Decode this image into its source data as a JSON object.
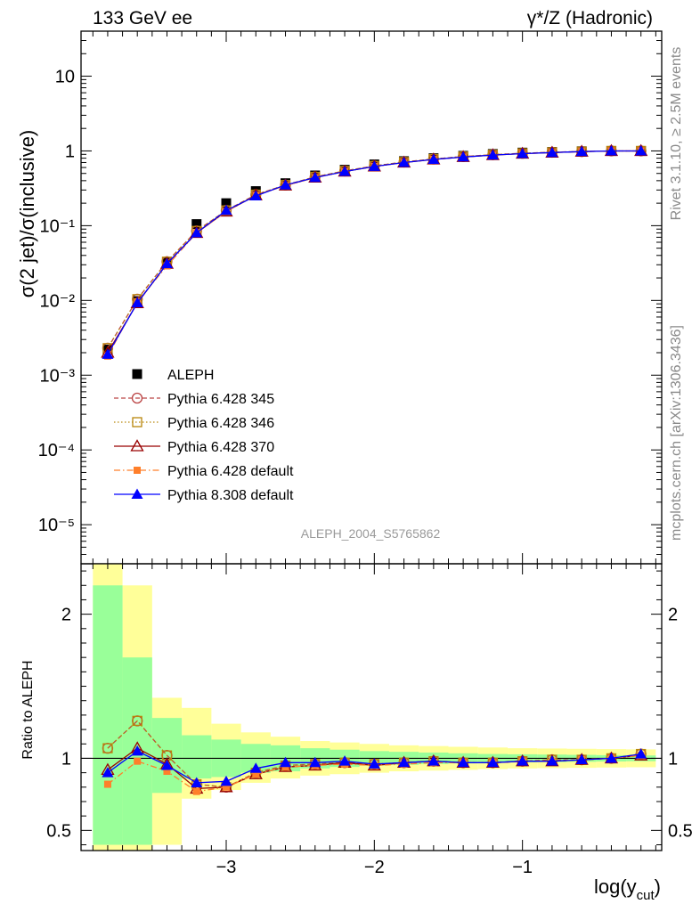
{
  "header": {
    "left": "133 GeV ee",
    "right": "γ*/Z (Hadronic)"
  },
  "side_labels": {
    "upper": "Rivet 3.1.10, ≥ 2.5M events",
    "lower": "mcplots.cern.ch [arXiv:1306.3436]"
  },
  "chart_data": [
    {
      "type": "line",
      "panel": "main",
      "ylabel": "σ(2 jet)/σ(inclusive)",
      "yscale": "log",
      "ylim": [
        3e-06,
        40
      ],
      "xlim": [
        -3.98,
        -0.06
      ],
      "x_ticks": [
        "-3",
        "-2",
        "-1"
      ],
      "y_ticks": [
        "10⁻⁵",
        "10⁻⁴",
        "10⁻³",
        "10⁻²",
        "10⁻¹",
        "1",
        "10"
      ],
      "annotation": "ALEPH_2004_S5765862",
      "legend_position": "lower-left",
      "x": [
        -3.8,
        -3.6,
        -3.4,
        -3.2,
        -3.0,
        -2.8,
        -2.6,
        -2.4,
        -2.2,
        -2.0,
        -1.8,
        -1.6,
        -1.4,
        -1.2,
        -1.0,
        -0.8,
        -0.6,
        -0.4,
        -0.2
      ],
      "series": [
        {
          "name": "ALEPH",
          "color": "#000000",
          "marker": "square-filled",
          "line": "none",
          "values": [
            0.0022,
            0.0098,
            0.032,
            0.105,
            0.2,
            0.29,
            0.37,
            0.47,
            0.56,
            0.66,
            0.73,
            0.8,
            0.86,
            0.91,
            0.95,
            0.97,
            0.99,
            1.0,
            1.0
          ]
        },
        {
          "name": "Pythia 6.428 345",
          "color": "#bb4444",
          "marker": "circle-open",
          "line": "dashed",
          "values": [
            0.0023,
            0.0104,
            0.033,
            0.085,
            0.16,
            0.26,
            0.35,
            0.45,
            0.54,
            0.63,
            0.71,
            0.78,
            0.84,
            0.89,
            0.93,
            0.96,
            0.98,
            1.0,
            1.0
          ]
        },
        {
          "name": "Pythia 6.428 346",
          "color": "#b8860b",
          "marker": "square-open",
          "line": "dotted",
          "values": [
            0.0023,
            0.0104,
            0.033,
            0.085,
            0.16,
            0.26,
            0.35,
            0.45,
            0.54,
            0.63,
            0.71,
            0.78,
            0.84,
            0.89,
            0.93,
            0.96,
            0.98,
            1.0,
            1.0
          ]
        },
        {
          "name": "Pythia 6.428 370",
          "color": "#990000",
          "marker": "triangle-open",
          "line": "solid",
          "values": [
            0.002,
            0.0092,
            0.031,
            0.08,
            0.155,
            0.255,
            0.345,
            0.44,
            0.53,
            0.62,
            0.7,
            0.77,
            0.83,
            0.88,
            0.92,
            0.95,
            0.98,
            1.0,
            1.0
          ]
        },
        {
          "name": "Pythia 6.428 default",
          "color": "#ff7f2a",
          "marker": "square-filled-small",
          "line": "dashdot",
          "values": [
            0.0018,
            0.0096,
            0.029,
            0.08,
            0.155,
            0.255,
            0.345,
            0.44,
            0.53,
            0.62,
            0.7,
            0.77,
            0.83,
            0.88,
            0.92,
            0.95,
            0.98,
            1.0,
            1.0
          ]
        },
        {
          "name": "Pythia 8.308 default",
          "color": "#0000ff",
          "marker": "triangle-filled",
          "line": "solid",
          "values": [
            0.0019,
            0.0093,
            0.031,
            0.08,
            0.16,
            0.25,
            0.35,
            0.44,
            0.53,
            0.62,
            0.7,
            0.77,
            0.83,
            0.88,
            0.92,
            0.95,
            0.98,
            1.0,
            1.0
          ]
        }
      ]
    },
    {
      "type": "line",
      "panel": "ratio",
      "xlabel": "log(y",
      "xlabel_sub": "cut",
      "xlabel_close": ")",
      "ylabel": "Ratio to ALEPH",
      "ylim": [
        0.36,
        2.35
      ],
      "xlim": [
        -3.98,
        -0.06
      ],
      "x_ticks": [
        "-3",
        "-2",
        "-1"
      ],
      "y_ticks": [
        "0.5",
        "1",
        "2"
      ],
      "bands": {
        "x_edges": [
          -3.9,
          -3.7,
          -3.5,
          -3.3,
          -3.1,
          -2.9,
          -2.7,
          -2.5,
          -2.3,
          -2.1,
          -1.9,
          -1.7,
          -1.5,
          -1.3,
          -1.1,
          -0.9,
          -0.7,
          -0.5,
          -0.3,
          -0.1
        ],
        "inner_color": "#99ff99",
        "outer_color": "#ffff99",
        "inner": [
          [
            0.4,
            2.2
          ],
          [
            0.4,
            1.7
          ],
          [
            0.76,
            1.28
          ],
          [
            0.86,
            1.16
          ],
          [
            0.87,
            1.13
          ],
          [
            0.9,
            1.1
          ],
          [
            0.91,
            1.09
          ],
          [
            0.93,
            1.07
          ],
          [
            0.94,
            1.06
          ],
          [
            0.95,
            1.05
          ],
          [
            0.955,
            1.045
          ],
          [
            0.96,
            1.04
          ],
          [
            0.965,
            1.035
          ],
          [
            0.97,
            1.03
          ],
          [
            0.972,
            1.028
          ],
          [
            0.974,
            1.026
          ],
          [
            0.976,
            1.024
          ],
          [
            0.978,
            1.022
          ],
          [
            0.98,
            1.02
          ]
        ],
        "outer": [
          [
            0.36,
            2.35
          ],
          [
            0.36,
            2.2
          ],
          [
            0.4,
            1.42
          ],
          [
            0.72,
            1.35
          ],
          [
            0.78,
            1.24
          ],
          [
            0.83,
            1.18
          ],
          [
            0.86,
            1.15
          ],
          [
            0.88,
            1.12
          ],
          [
            0.89,
            1.11
          ],
          [
            0.9,
            1.1
          ],
          [
            0.91,
            1.09
          ],
          [
            0.915,
            1.085
          ],
          [
            0.92,
            1.08
          ],
          [
            0.925,
            1.075
          ],
          [
            0.93,
            1.07
          ],
          [
            0.932,
            1.068
          ],
          [
            0.934,
            1.066
          ],
          [
            0.936,
            1.064
          ],
          [
            0.938,
            1.062
          ]
        ]
      },
      "x": [
        -3.8,
        -3.6,
        -3.4,
        -3.2,
        -3.0,
        -2.8,
        -2.6,
        -2.4,
        -2.2,
        -2.0,
        -1.8,
        -1.6,
        -1.4,
        -1.2,
        -1.0,
        -0.8,
        -0.6,
        -0.4,
        -0.2
      ],
      "series": [
        {
          "name": "Pythia 6.428 345",
          "color": "#bb4444",
          "marker": "circle-open",
          "line": "dashed",
          "values": [
            1.07,
            1.26,
            1.02,
            0.82,
            0.8,
            0.9,
            0.95,
            0.96,
            0.97,
            0.96,
            0.97,
            0.98,
            0.97,
            0.97,
            0.98,
            0.99,
            0.99,
            1.0,
            1.03
          ]
        },
        {
          "name": "Pythia 6.428 346",
          "color": "#b8860b",
          "marker": "square-open",
          "line": "dotted",
          "values": [
            1.07,
            1.26,
            1.02,
            0.82,
            0.8,
            0.9,
            0.95,
            0.96,
            0.97,
            0.96,
            0.97,
            0.98,
            0.97,
            0.97,
            0.98,
            0.99,
            0.99,
            1.0,
            1.03
          ]
        },
        {
          "name": "Pythia 6.428 370",
          "color": "#990000",
          "marker": "triangle-open",
          "line": "solid",
          "values": [
            0.92,
            1.07,
            0.96,
            0.79,
            0.8,
            0.89,
            0.94,
            0.95,
            0.97,
            0.95,
            0.97,
            0.98,
            0.97,
            0.97,
            0.98,
            0.98,
            0.99,
            1.0,
            1.02
          ]
        },
        {
          "name": "Pythia 6.428 default",
          "color": "#ff7f2a",
          "marker": "square-filled-small",
          "line": "dashdot",
          "values": [
            0.82,
            0.98,
            0.91,
            0.77,
            0.8,
            0.89,
            0.94,
            0.95,
            0.96,
            0.95,
            0.96,
            0.97,
            0.97,
            0.97,
            0.98,
            0.98,
            0.99,
            1.0,
            1.02
          ]
        },
        {
          "name": "Pythia 8.308 default",
          "color": "#0000ff",
          "marker": "triangle-filled",
          "line": "solid",
          "values": [
            0.9,
            1.05,
            0.95,
            0.83,
            0.84,
            0.93,
            0.97,
            0.97,
            0.98,
            0.96,
            0.97,
            0.98,
            0.97,
            0.97,
            0.98,
            0.98,
            0.99,
            1.0,
            1.03
          ]
        }
      ]
    }
  ]
}
